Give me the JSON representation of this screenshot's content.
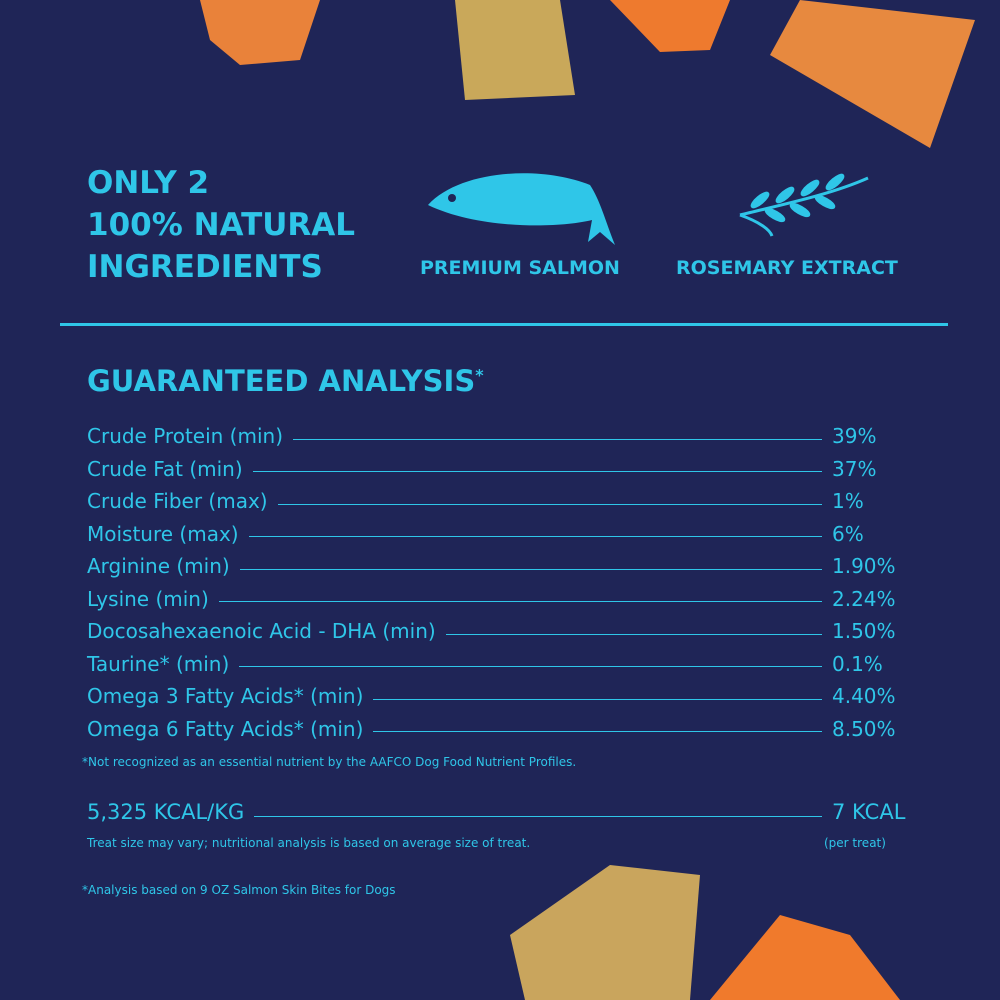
{
  "header": {
    "title_lines": [
      "ONLY 2",
      "100% NATURAL",
      "INGREDIENTS"
    ]
  },
  "ingredients": [
    {
      "label": "PREMIUM SALMON"
    },
    {
      "label": "ROSEMARY EXTRACT"
    }
  ],
  "analysis": {
    "title": "GUARANTEED ANALYSIS",
    "title_mark": "*",
    "rows": [
      [
        "Crude Protein (min)",
        "39%"
      ],
      [
        "Crude Fat (min)",
        "37%"
      ],
      [
        "Crude Fiber (max)",
        "1%"
      ],
      [
        "Moisture (max)",
        "6%"
      ],
      [
        "Arginine (min)",
        "1.90%"
      ],
      [
        "Lysine (min)",
        "2.24%"
      ],
      [
        "Docosahexaenoic Acid - DHA (min)",
        "1.50%"
      ],
      [
        "Taurine* (min)",
        "0.1%"
      ],
      [
        "Omega 3 Fatty Acids* (min)",
        "4.40%"
      ],
      [
        "Omega 6 Fatty Acids* (min)",
        "8.50%"
      ]
    ],
    "footnote": "*Not recognized as an essential nutrient by the AAFCO Dog Food Nutrient Profiles."
  },
  "calories": {
    "per_kg": "5,325 KCAL/KG",
    "per_treat": "7 KCAL",
    "per_treat_note": "(per treat)",
    "note": "Treat size may vary; nutritional analysis is based on average size of treat."
  },
  "footer": {
    "note": "*Analysis based on 9 OZ Salmon Skin Bites for Dogs"
  }
}
